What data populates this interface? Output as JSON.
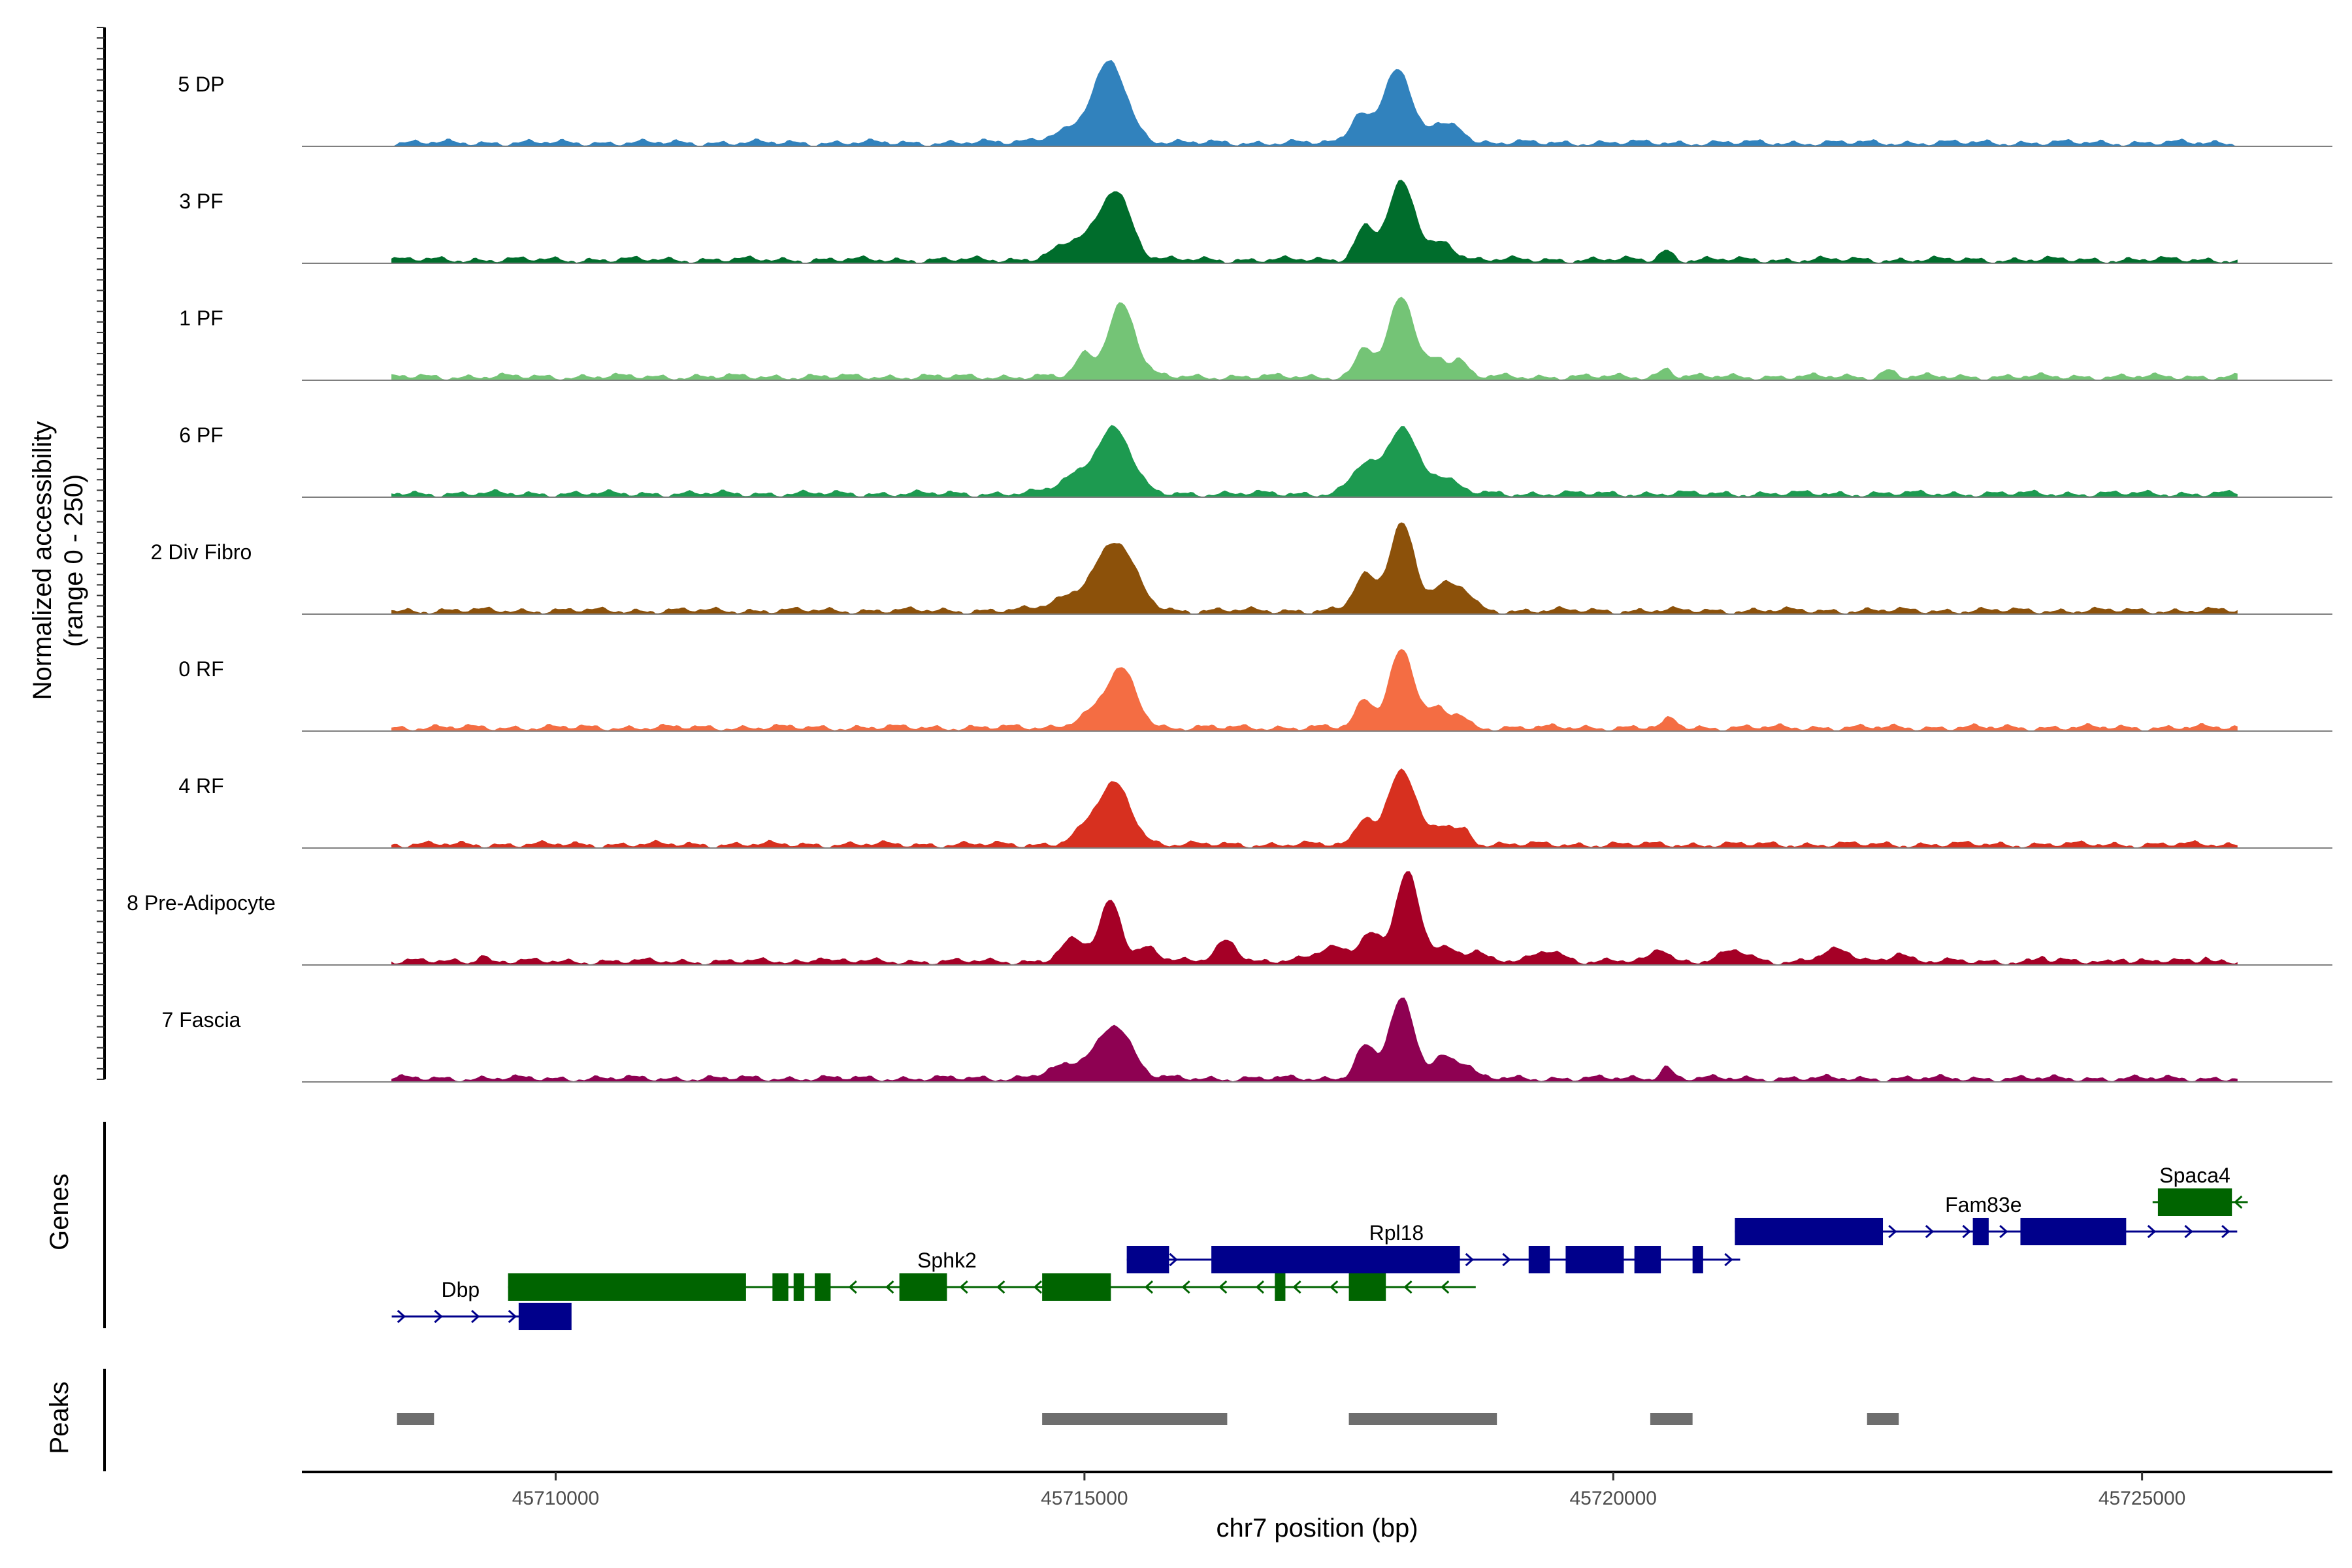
{
  "chart_data": {
    "type": "area",
    "title": "",
    "ylabel_lines": [
      "Normalized accessibility",
      "(range 0 - 250)"
    ],
    "xlabel": "chr7 position (bp)",
    "xlim": [
      45707600,
      45726800
    ],
    "ylim": [
      0,
      250
    ],
    "x_ticks": [
      {
        "value": 45710000,
        "label": "45710000"
      },
      {
        "value": 45715000,
        "label": "45715000"
      },
      {
        "value": 45720000,
        "label": "45720000"
      },
      {
        "value": 45725000,
        "label": "45725000"
      }
    ],
    "panel_labels": {
      "genes": "Genes",
      "peaks": "Peaks"
    },
    "tracks": [
      {
        "name": "5 DP",
        "color": "#3182bd",
        "scale": 1.0,
        "peaks": [
          [
            45715250,
            0.72,
            150
          ],
          [
            45715000,
            0.15,
            300
          ],
          [
            45717950,
            0.76,
            130
          ],
          [
            45717600,
            0.3,
            90
          ],
          [
            45718350,
            0.18,
            120
          ],
          [
            45718550,
            0.12,
            80
          ]
        ]
      },
      {
        "name": "3 PF",
        "color": "#006d2c",
        "scale": 1.0,
        "peaks": [
          [
            45715300,
            0.68,
            140
          ],
          [
            45714950,
            0.2,
            200
          ],
          [
            45718000,
            0.78,
            130
          ],
          [
            45717650,
            0.33,
            90
          ],
          [
            45718400,
            0.18,
            110
          ],
          [
            45720500,
            0.1,
            60
          ]
        ]
      },
      {
        "name": "1 PF",
        "color": "#74c476",
        "scale": 1.0,
        "peaks": [
          [
            45715350,
            0.75,
            130
          ],
          [
            45715000,
            0.22,
            80
          ],
          [
            45718000,
            0.82,
            120
          ],
          [
            45717650,
            0.3,
            80
          ],
          [
            45718350,
            0.2,
            90
          ],
          [
            45718550,
            0.16,
            70
          ],
          [
            45720500,
            0.09,
            60
          ],
          [
            45722600,
            0.07,
            60
          ]
        ]
      },
      {
        "name": "6 PF",
        "color": "#1d9a50",
        "scale": 1.0,
        "peaks": [
          [
            45715300,
            0.6,
            150
          ],
          [
            45715000,
            0.22,
            200
          ],
          [
            45718000,
            0.68,
            130
          ],
          [
            45717650,
            0.3,
            120
          ],
          [
            45718350,
            0.18,
            150
          ]
        ]
      },
      {
        "name": "2 Div Fibro",
        "color": "#8c510a",
        "scale": 1.0,
        "peaks": [
          [
            45715300,
            0.68,
            180
          ],
          [
            45714900,
            0.15,
            200
          ],
          [
            45718000,
            0.9,
            120
          ],
          [
            45717650,
            0.35,
            100
          ],
          [
            45718400,
            0.25,
            120
          ],
          [
            45718600,
            0.15,
            90
          ]
        ]
      },
      {
        "name": "0 RF",
        "color": "#f46d43",
        "scale": 1.0,
        "peaks": [
          [
            45715350,
            0.58,
            140
          ],
          [
            45715050,
            0.12,
            150
          ],
          [
            45718000,
            0.8,
            120
          ],
          [
            45717650,
            0.28,
            80
          ],
          [
            45718350,
            0.18,
            90
          ],
          [
            45718550,
            0.12,
            70
          ],
          [
            45720550,
            0.09,
            60
          ]
        ]
      },
      {
        "name": "4 RF",
        "color": "#d7301f",
        "scale": 1.0,
        "peaks": [
          [
            45715300,
            0.58,
            150
          ],
          [
            45715050,
            0.15,
            150
          ],
          [
            45718000,
            0.77,
            130
          ],
          [
            45717650,
            0.28,
            80
          ],
          [
            45718400,
            0.2,
            100
          ],
          [
            45718600,
            0.13,
            70
          ]
        ]
      },
      {
        "name": "8 Pre-Adipocyte",
        "color": "#a50026",
        "scale": 1.0,
        "peaks": [
          [
            45715250,
            0.62,
            100
          ],
          [
            45714900,
            0.22,
            120
          ],
          [
            45715600,
            0.15,
            100
          ],
          [
            45716350,
            0.22,
            100
          ],
          [
            45717350,
            0.15,
            150
          ],
          [
            45717700,
            0.28,
            100
          ],
          [
            45718050,
            0.9,
            110
          ],
          [
            45718400,
            0.15,
            120
          ],
          [
            45718700,
            0.12,
            80
          ],
          [
            45719400,
            0.12,
            120
          ],
          [
            45720450,
            0.14,
            80
          ],
          [
            45721150,
            0.11,
            120
          ],
          [
            45722100,
            0.11,
            150
          ],
          [
            45722700,
            0.1,
            80
          ],
          [
            45709300,
            0.08,
            40
          ],
          [
            45712500,
            0.07,
            40
          ],
          [
            45724050,
            0.05,
            40
          ],
          [
            45724800,
            0.05,
            40
          ],
          [
            45725600,
            0.05,
            40
          ]
        ]
      },
      {
        "name": "7 Fascia",
        "color": "#8e0152",
        "scale": 1.0,
        "peaks": [
          [
            45715300,
            0.5,
            150
          ],
          [
            45714950,
            0.15,
            250
          ],
          [
            45718000,
            0.8,
            120
          ],
          [
            45717650,
            0.32,
            90
          ],
          [
            45718400,
            0.23,
            100
          ],
          [
            45718600,
            0.13,
            80
          ],
          [
            45720500,
            0.12,
            60
          ]
        ]
      }
    ],
    "genes": [
      {
        "name": "Dbp",
        "strand": "+",
        "color": "#00008b",
        "start": 45708450,
        "end": 45709700,
        "row": 0,
        "exons": [
          [
            45709650,
            45710150
          ]
        ],
        "label_x": 45709100
      },
      {
        "name": "Sphk2",
        "strand": "-",
        "color": "#006400",
        "start": 45709550,
        "end": 45718700,
        "row": 1,
        "exons": [
          [
            45709550,
            45711800
          ],
          [
            45712050,
            45712200
          ],
          [
            45712250,
            45712350
          ],
          [
            45712450,
            45712600
          ],
          [
            45713250,
            45713700
          ],
          [
            45714600,
            45715250
          ],
          [
            45716800,
            45716900
          ],
          [
            45717500,
            45717850
          ]
        ],
        "label_x": 45713700
      },
      {
        "name": "Rpl18",
        "strand": "+",
        "color": "#00008b",
        "start": 45715400,
        "end": 45721200,
        "row": 2,
        "exons": [
          [
            45715400,
            45715800
          ],
          [
            45716200,
            45718200
          ],
          [
            45718150,
            45718550
          ],
          [
            45719200,
            45719400
          ],
          [
            45719550,
            45720100
          ],
          [
            45720200,
            45720450
          ],
          [
            45720750,
            45720850
          ]
        ],
        "label_x": 45717950
      },
      {
        "name": "Fam83e",
        "strand": "+",
        "color": "#00008b",
        "start": 45721150,
        "end": 45725900,
        "row": 3,
        "exons": [
          [
            45721150,
            45722550
          ],
          [
            45723400,
            45723550
          ],
          [
            45723850,
            45724850
          ]
        ],
        "label_x": 45723500
      },
      {
        "name": "Spaca4",
        "strand": "-",
        "color": "#006400",
        "start": 45725100,
        "end": 45726000,
        "row": 4,
        "exons": [
          [
            45725150,
            45725850
          ]
        ],
        "label_x": 45725500
      }
    ],
    "peak_regions": [
      [
        45708500,
        45708850
      ],
      [
        45714600,
        45716350
      ],
      [
        45717500,
        45718900
      ],
      [
        45720350,
        45720750
      ],
      [
        45722400,
        45722700
      ]
    ]
  }
}
